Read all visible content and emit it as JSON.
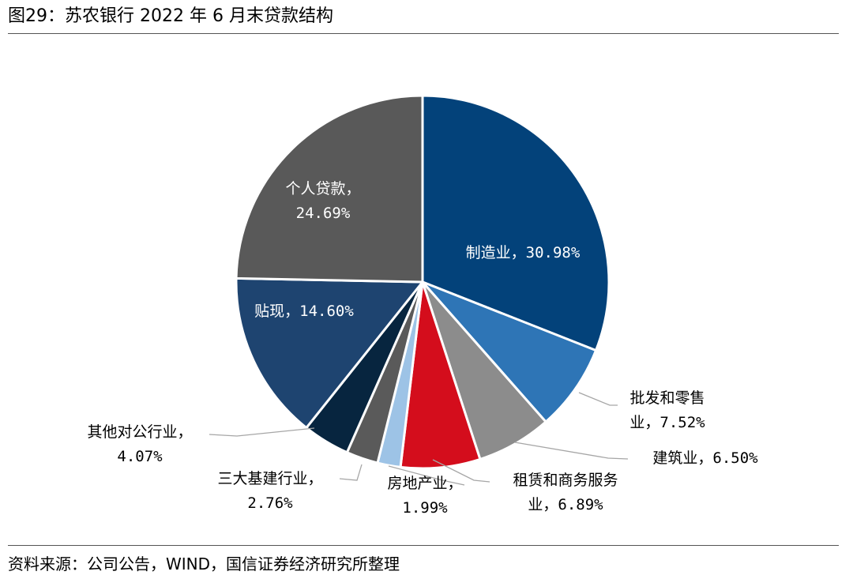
{
  "figure": {
    "title": "图29：苏农银行 2022 年 6 月末贷款结构",
    "source": "资料来源：公司公告，WIND，国信证券经济研究所整理"
  },
  "chart_data": {
    "type": "pie",
    "title": "",
    "start_angle_deg": 0,
    "direction": "clockwise",
    "slices": [
      {
        "label": "制造业",
        "value": 30.98,
        "value_text": "30.98%",
        "color": "#03427a",
        "label_inside": true
      },
      {
        "label": "批发和零售业",
        "value": 7.52,
        "value_text": "7.52%",
        "color": "#2e75b6",
        "label_inside": false
      },
      {
        "label": "建筑业",
        "value": 6.5,
        "value_text": "6.50%",
        "color": "#8c8c8c",
        "label_inside": false
      },
      {
        "label": "租赁和商务服务业",
        "value": 6.89,
        "value_text": "6.89%",
        "color": "#d40d1c",
        "label_inside": false
      },
      {
        "label": "房地产业",
        "value": 1.99,
        "value_text": "1.99%",
        "color": "#9dc3e6",
        "label_inside": false
      },
      {
        "label": "三大基建行业",
        "value": 2.76,
        "value_text": "2.76%",
        "color": "#5a5a5a",
        "label_inside": false
      },
      {
        "label": "其他对公行业",
        "value": 4.07,
        "value_text": "4.07%",
        "color": "#07253f",
        "label_inside": false
      },
      {
        "label": "贴现",
        "value": 14.6,
        "value_text": "14.60%",
        "color": "#1e4470",
        "label_inside": true
      },
      {
        "label": "个人贷款",
        "value": 24.69,
        "value_text": "24.69%",
        "color": "#595959",
        "label_inside": true
      }
    ],
    "labels": [
      {
        "lines": [
          "制造业，30.98%"
        ]
      },
      {
        "lines": [
          "批发和零售",
          "业，7.52%"
        ]
      },
      {
        "lines": [
          "建筑业，6.50%"
        ]
      },
      {
        "lines": [
          "租赁和商务服务",
          "业，6.89%"
        ]
      },
      {
        "lines": [
          "房地产业，",
          "1.99%"
        ]
      },
      {
        "lines": [
          "三大基建行业，",
          "2.76%"
        ]
      },
      {
        "lines": [
          "其他对公行业，",
          "4.07%"
        ]
      },
      {
        "lines": [
          "贴现，14.60%"
        ]
      },
      {
        "lines": [
          "个人贷款，",
          "24.69%"
        ]
      }
    ]
  }
}
